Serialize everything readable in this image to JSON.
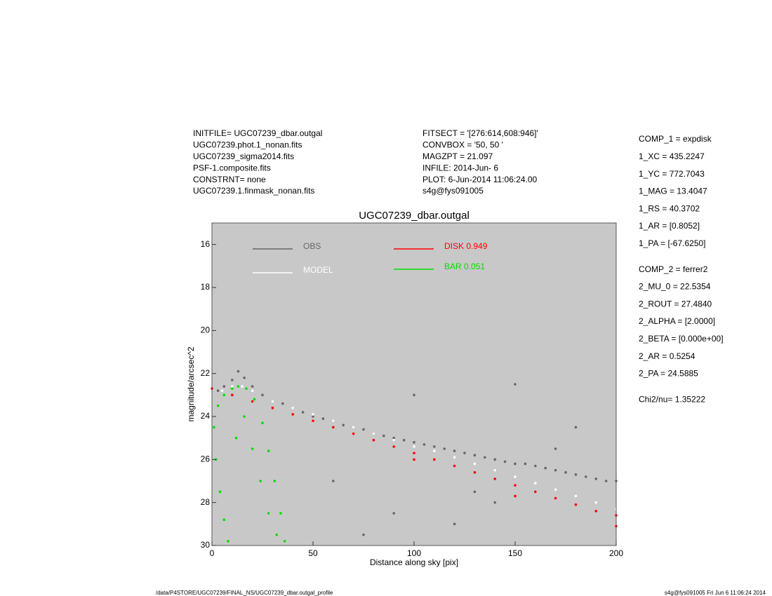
{
  "header": {
    "left": [
      "INITFILE= UGC07239_dbar.outgal",
      "UGC07239.phot.1_nonan.fits",
      "UGC07239_sigma2014.fits",
      "PSF-1.composite.fits",
      "CONSTRNT= none",
      "UGC07239.1.finmask_nonan.fits"
    ],
    "middle": [
      "FITSECT = '[276:614,608:946]'",
      "CONVBOX = '50, 50  '",
      "MAGZPT =             21.097",
      "INFILE: 2014-Jun- 6",
      "PLOT:  6-Jun-2014 11:06:24.00",
      "s4g@fys091005"
    ]
  },
  "parameters": [
    [
      "COMP_1  = expdisk",
      "1_XC    = 435.2247",
      "1_YC    = 772.7043",
      "1_MAG   = 13.4047",
      "1_RS    = 40.3702",
      "1_AR    = [0.8052]",
      "1_PA    = [-67.6250]"
    ],
    [
      "COMP_2  = ferrer2",
      "2_MU_0  = 22.5354",
      "2_ROUT  = 27.4840",
      "2_ALPHA = [2.0000]",
      "2_BETA  = [0.000e+00]",
      "2_AR    = 0.5254",
      "2_PA    = 24.5885"
    ],
    [
      "Chi2/nu=     1.35222"
    ]
  ],
  "footer": {
    "left": "/data/P4STORE/UGC07239/FINAL_NS/UGC07239_dbar.outgal_profile",
    "right": "s4g@fys091005  Fri Jun  6 11:06:24 2014"
  },
  "chart_data": {
    "type": "scatter",
    "title": "UGC07239_dbar.outgal",
    "x_label": "Distance along sky [pix]",
    "y_label": "magnitude/arcsec^2",
    "xlim": [
      0,
      200
    ],
    "ylim": [
      30,
      15
    ],
    "xticks": [
      0,
      50,
      100,
      150,
      200
    ],
    "yticks": [
      16,
      18,
      20,
      22,
      24,
      26,
      28,
      30
    ],
    "series": [
      {
        "name": "OBS",
        "color": "#666666",
        "x": [
          3,
          6,
          10,
          13,
          16,
          20,
          25,
          30,
          35,
          40,
          45,
          50,
          55,
          60,
          65,
          70,
          75,
          80,
          85,
          90,
          95,
          100,
          105,
          110,
          115,
          120,
          125,
          130,
          135,
          140,
          145,
          150,
          155,
          160,
          165,
          170,
          175,
          180,
          185,
          190,
          195,
          200,
          60,
          90,
          120,
          150,
          180,
          100,
          130,
          170,
          75,
          140
        ],
        "y": [
          22.8,
          22.6,
          22.3,
          21.9,
          22.2,
          22.6,
          23.0,
          23.3,
          23.4,
          23.6,
          23.8,
          24.0,
          24.1,
          24.2,
          24.4,
          24.5,
          24.6,
          24.8,
          24.9,
          25.0,
          25.1,
          25.2,
          25.3,
          25.4,
          25.5,
          25.6,
          25.7,
          25.8,
          25.9,
          26.0,
          26.1,
          26.2,
          26.2,
          26.3,
          26.4,
          26.5,
          26.6,
          26.7,
          26.8,
          26.9,
          27.0,
          27.0,
          27.0,
          28.5,
          29.0,
          22.5,
          24.5,
          23.0,
          27.5,
          25.5,
          29.5,
          28.0
        ]
      },
      {
        "name": "MODEL",
        "color": "#ffffff",
        "x": [
          5,
          10,
          15,
          20,
          30,
          40,
          50,
          60,
          70,
          80,
          90,
          100,
          110,
          120,
          130,
          140,
          150,
          160,
          170,
          180,
          190,
          200
        ],
        "y": [
          22.8,
          22.6,
          22.6,
          22.8,
          23.3,
          23.6,
          23.9,
          24.2,
          24.5,
          24.8,
          25.1,
          25.4,
          25.6,
          25.9,
          26.2,
          26.5,
          26.8,
          27.1,
          27.4,
          27.7,
          28.0,
          28.3
        ]
      },
      {
        "name": "DISK  0.949",
        "color": "#ff0000",
        "x": [
          0,
          10,
          20,
          30,
          40,
          50,
          60,
          70,
          80,
          90,
          100,
          110,
          120,
          130,
          140,
          150,
          160,
          170,
          180,
          190,
          200,
          100,
          150,
          200
        ],
        "y": [
          22.7,
          23.0,
          23.3,
          23.6,
          23.9,
          24.2,
          24.5,
          24.8,
          25.1,
          25.4,
          25.7,
          26.0,
          26.3,
          26.6,
          26.9,
          27.2,
          27.5,
          27.8,
          28.1,
          28.4,
          28.6,
          26.0,
          27.7,
          29.1
        ]
      },
      {
        "name": "BAR  0.051",
        "color": "#00dd00",
        "x": [
          1,
          3,
          6,
          10,
          13,
          17,
          21,
          25,
          28,
          31,
          34,
          36,
          2,
          4,
          6,
          8,
          12,
          16,
          20,
          24,
          28,
          32
        ],
        "y": [
          24.5,
          23.5,
          23.0,
          22.7,
          22.6,
          22.7,
          23.2,
          24.3,
          25.6,
          27.0,
          28.5,
          29.8,
          26.0,
          27.5,
          28.8,
          29.8,
          25.0,
          24.0,
          25.5,
          27.0,
          28.5,
          29.5
        ]
      }
    ]
  }
}
